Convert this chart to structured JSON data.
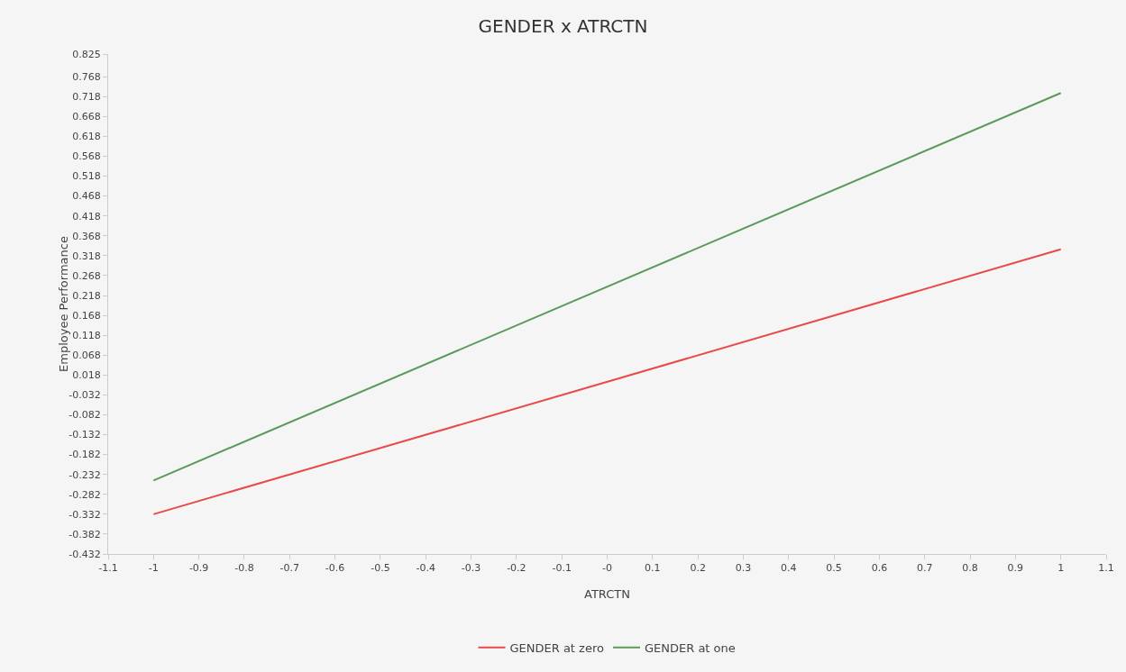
{
  "chart_data": {
    "type": "line",
    "title": "GENDER x ATRCTN",
    "xlabel": "ATRCTN",
    "ylabel": "Employee Performance",
    "xlim": [
      -1.1,
      1.1
    ],
    "xticks": [
      -1.1,
      -1,
      -0.9,
      -0.8,
      -0.7,
      -0.6,
      -0.5,
      -0.4,
      -0.3,
      -0.2,
      -0.1,
      {
        "value": 0,
        "label": "-0"
      },
      0.1,
      0.2,
      0.3,
      0.4,
      0.5,
      0.6,
      0.7,
      0.8,
      0.9,
      1,
      1.1
    ],
    "ylim": [
      -0.432,
      0.825
    ],
    "yticks": [
      -0.432,
      -0.382,
      -0.332,
      -0.282,
      -0.232,
      -0.182,
      -0.132,
      -0.082,
      -0.032,
      0.018,
      0.068,
      0.118,
      0.168,
      0.218,
      0.268,
      0.318,
      0.368,
      0.418,
      0.468,
      0.518,
      0.568,
      0.618,
      0.668,
      0.718,
      0.768,
      0.825
    ],
    "x": [
      -1,
      1
    ],
    "series": [
      {
        "name": "GENDER at zero",
        "color": "#e84a4a",
        "values": [
          -0.332,
          0.334
        ]
      },
      {
        "name": "GENDER at one",
        "color": "#5c9a5c",
        "values": [
          -0.247,
          0.727
        ]
      }
    ],
    "grid": false,
    "legend": "bottom",
    "marker": "none",
    "line_style": "solid"
  }
}
